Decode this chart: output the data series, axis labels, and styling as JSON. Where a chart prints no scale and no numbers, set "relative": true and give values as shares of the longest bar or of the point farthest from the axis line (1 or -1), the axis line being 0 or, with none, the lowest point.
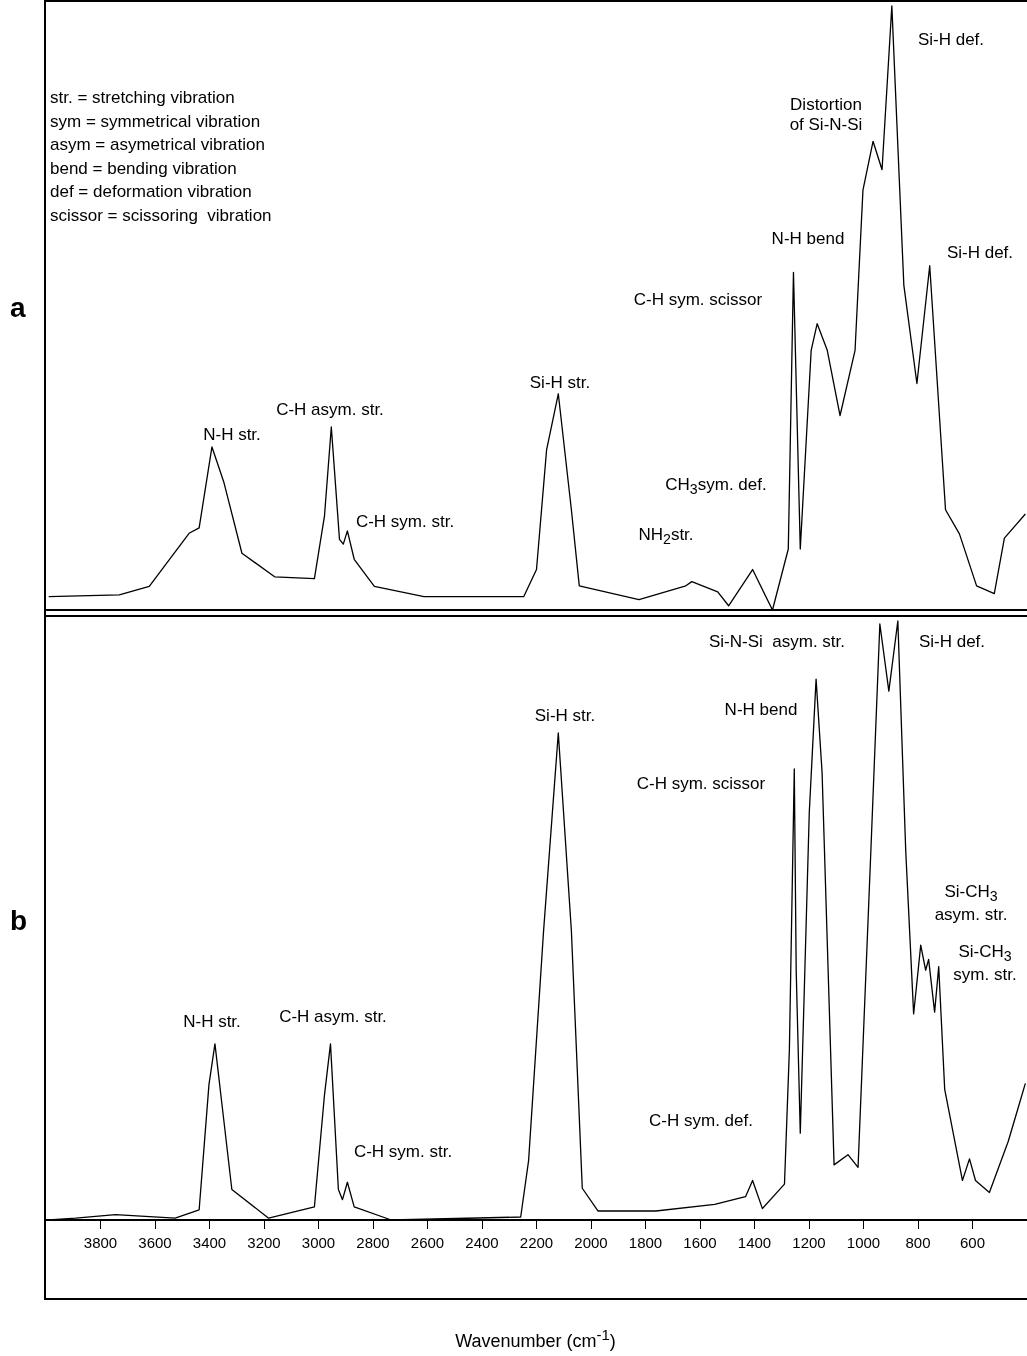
{
  "chart_data": [
    {
      "type": "line",
      "title": "a",
      "relative": true,
      "tick_labels": false,
      "marker": "none",
      "color": "#000000",
      "xlim": [
        4000,
        400
      ],
      "x": [
        3990,
        3731,
        3621,
        3475,
        3438,
        3391,
        3347,
        3281,
        3161,
        3015,
        2978,
        2953,
        2923,
        2909,
        2894,
        2869,
        2795,
        2613,
        2247,
        2200,
        2163,
        2120,
        2072,
        2043,
        1824,
        1652,
        1630,
        1535,
        1495,
        1407,
        1334,
        1276,
        1257,
        1232,
        1192,
        1170,
        1133,
        1086,
        1031,
        1002,
        965,
        932,
        896,
        852,
        804,
        757,
        699,
        648,
        585,
        520,
        483,
        406
      ],
      "values": [
        0.022,
        0.025,
        0.039,
        0.127,
        0.136,
        0.27,
        0.211,
        0.094,
        0.055,
        0.052,
        0.156,
        0.303,
        0.117,
        0.109,
        0.131,
        0.084,
        0.039,
        0.022,
        0.022,
        0.067,
        0.265,
        0.358,
        0.166,
        0.04,
        0.017,
        0.04,
        0.047,
        0.03,
        0.007,
        0.067,
        0,
        0.101,
        0.559,
        0.101,
        0.43,
        0.474,
        0.43,
        0.322,
        0.43,
        0.695,
        0.776,
        0.729,
        1,
        0.538,
        0.375,
        0.57,
        0.166,
        0.126,
        0.04,
        0.027,
        0.119,
        0.159
      ],
      "annotations": [
        "str. = stretching vibration",
        "sym = symmetrical vibration",
        "asym = asymetrical vibration",
        "bend = bending vibration",
        "def = deformation vibration",
        "scissor = scissoring  vibration",
        "N-H str.",
        "C-H asym. str.",
        "C-H sym. str.",
        "Si-H str.",
        "NH$_{2}$str.",
        "CH$_{3}$sym. def.",
        "C-H sym. scissor",
        "N-H bend",
        "Distortion\nof Si-N-Si",
        "Si-H def.",
        "Si-H def."
      ]
    },
    {
      "type": "line",
      "title": "b",
      "relative": true,
      "tick_labels": "x",
      "marker": "none",
      "color": "#000000",
      "xlim": [
        4000,
        400
      ],
      "xticks": [
        3800,
        3600,
        3400,
        3200,
        3000,
        2800,
        2600,
        2400,
        2200,
        2000,
        1800,
        1600,
        1400,
        1200,
        1000,
        800,
        600
      ],
      "xlabel": "Wavenumber (cm$^{-1}$)",
      "x": [
        3990,
        3891,
        3745,
        3526,
        3438,
        3402,
        3380,
        3354,
        3318,
        3183,
        3015,
        2978,
        2956,
        2927,
        2912,
        2894,
        2869,
        2733,
        2258,
        2229,
        2174,
        2120,
        2072,
        2032,
        1974,
        1762,
        1546,
        1433,
        1407,
        1371,
        1290,
        1272,
        1254,
        1247,
        1232,
        1199,
        1174,
        1152,
        1108,
        1057,
        1020,
        973,
        940,
        907,
        874,
        845,
        816,
        790,
        772,
        761,
        739,
        724,
        702,
        637,
        611,
        589,
        538,
        469,
        406
      ],
      "values": [
        0,
        0.003,
        0.009,
        0.003,
        0.017,
        0.226,
        0.294,
        0.192,
        0.051,
        0.003,
        0.022,
        0.209,
        0.294,
        0.051,
        0.034,
        0.063,
        0.022,
        0,
        0.005,
        0.099,
        0.483,
        0.813,
        0.483,
        0.053,
        0.015,
        0.015,
        0.026,
        0.039,
        0.066,
        0.019,
        0.06,
        0.284,
        0.753,
        0.417,
        0.145,
        0.68,
        0.903,
        0.747,
        0.092,
        0.109,
        0.088,
        0.616,
        0.995,
        0.883,
        1,
        0.616,
        0.344,
        0.459,
        0.417,
        0.435,
        0.347,
        0.423,
        0.218,
        0.066,
        0.102,
        0.066,
        0.046,
        0.131,
        0.228
      ],
      "annotations": [
        "N-H str.",
        "C-H asym. str.",
        "C-H sym. str.",
        "Si-H str.",
        "N-H bend",
        "C-H sym. scissor",
        "Si-N-Si  asym. str.",
        "Si-H def.",
        "Si-CH$_{3}$\nasym. str.",
        "Si-CH$_{3}$\nsym. str.",
        "C-H sym. def."
      ]
    }
  ]
}
